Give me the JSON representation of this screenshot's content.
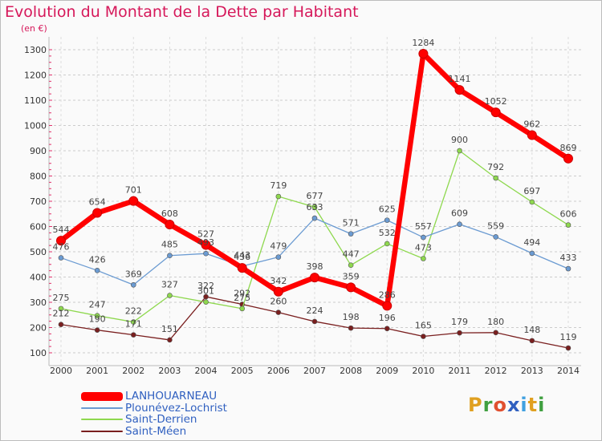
{
  "header": {
    "title": "Evolution du Montant de la Dette par Habitant",
    "unit": "(en €)"
  },
  "logo": {
    "text": "Proxiti",
    "letter_colors": [
      "#e0a020",
      "#40a040",
      "#e05030",
      "#3060c0",
      "#40a0e0",
      "#e0a020",
      "#40a040"
    ]
  },
  "chart_data": {
    "type": "line",
    "title": "Evolution du Montant de la Dette par Habitant",
    "subtitle": "(en €)",
    "xlabel": "",
    "ylabel": "",
    "x": [
      "2000",
      "2001",
      "2002",
      "2003",
      "2004",
      "2005",
      "2006",
      "2007",
      "2008",
      "2009",
      "2010",
      "2011",
      "2012",
      "2013",
      "2014"
    ],
    "ylim": [
      100,
      1300
    ],
    "yticks": [
      100,
      200,
      300,
      400,
      500,
      600,
      700,
      800,
      900,
      1000,
      1100,
      1200,
      1300
    ],
    "grid": true,
    "legend_position": "bottom-left",
    "series": [
      {
        "name": "LANHOUARNEAU",
        "color": "#ff0000",
        "values": [
          544,
          654,
          701,
          608,
          527,
          436,
          342,
          398,
          359,
          286,
          1284,
          1141,
          1052,
          962,
          869
        ]
      },
      {
        "name": "Plounévez-Lochrist",
        "color": "#6b9bd2",
        "values": [
          476,
          426,
          369,
          485,
          493,
          443,
          479,
          633,
          571,
          625,
          557,
          609,
          559,
          494,
          433
        ]
      },
      {
        "name": "Saint-Derrien",
        "color": "#8ed84e",
        "values": [
          275,
          247,
          222,
          327,
          301,
          275,
          719,
          677,
          447,
          532,
          473,
          900,
          792,
          697,
          606
        ]
      },
      {
        "name": "Saint-Méen",
        "color": "#7a1f1f",
        "values": [
          212,
          190,
          171,
          151,
          322,
          292,
          260,
          224,
          198,
          196,
          165,
          179,
          180,
          148,
          119
        ]
      }
    ],
    "data_labels": [
      [
        "544",
        "654",
        "701",
        "608",
        "527",
        "436",
        "342",
        "398",
        "359",
        "286",
        "1284",
        "1141",
        "1052",
        "962",
        "869"
      ],
      [
        "476",
        "426",
        "369",
        "485",
        "493",
        "443",
        "479",
        "633",
        "571",
        "625",
        "557",
        "609",
        "559",
        "494",
        "433"
      ],
      [
        "275",
        "247",
        "222",
        "327",
        "301",
        "275",
        "719",
        "677",
        "447",
        "532",
        "473",
        "900",
        "792",
        "697",
        "606"
      ],
      [
        "212",
        "190",
        "171",
        "151",
        "322",
        "292",
        "260",
        "224",
        "198",
        "196",
        "165",
        "179",
        "180",
        "148",
        "119"
      ]
    ]
  }
}
